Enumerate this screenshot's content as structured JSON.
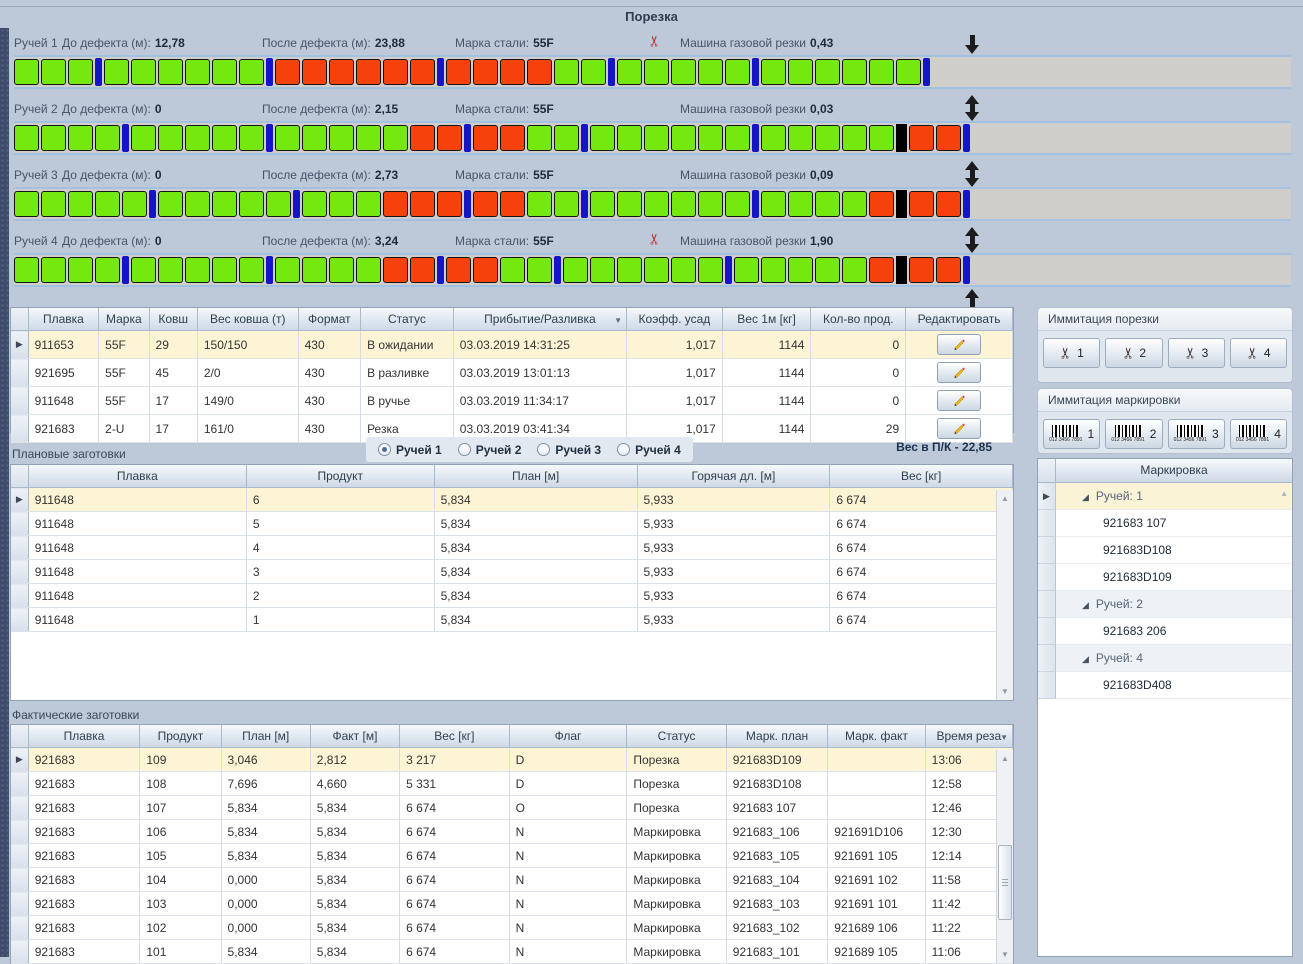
{
  "title": "Порезка",
  "colors": {
    "green_block": "#74e90f",
    "red_block": "#f5420c",
    "separator_blue": "#1414c8",
    "cut_marker": "#000000",
    "selected_row": "#fcf4d5"
  },
  "streams": [
    {
      "name": "Ручей 1",
      "before_label": "До дефекта (м):",
      "before_value": "12,78",
      "after_label": "После дефекта (м):",
      "after_value": "23,88",
      "grade_label": "Марка стали:",
      "grade_value": "55F",
      "machine_label": "Машина газовой резки",
      "machine_value": "0,43",
      "scissors": true,
      "arrow": "down",
      "below_arrow": false,
      "blocks": "gggBggggggBrrrrrrBrrrrggBgggggBggggggB"
    },
    {
      "name": "Ручей 2",
      "before_label": "До дефекта (м):",
      "before_value": "0",
      "after_label": "После дефекта (м):",
      "after_value": "2,15",
      "grade_label": "Марка стали:",
      "grade_value": "55F",
      "machine_label": "Машина газовой резки",
      "machine_value": "0,03",
      "scissors": false,
      "arrow": "double",
      "below_arrow": false,
      "blocks": "ggggBgggggBgggggrrBrrggBggggggBgggggKrrB"
    },
    {
      "name": "Ручей 3",
      "before_label": "До дефекта (м):",
      "before_value": "0",
      "after_label": "После дефекта (м):",
      "after_value": "2,73",
      "grade_label": "Марка стали:",
      "grade_value": "55F",
      "machine_label": "Машина газовой резки",
      "machine_value": "0,09",
      "scissors": false,
      "arrow": "double",
      "below_arrow": false,
      "blocks": "gggggBgggggBgggrrrBrrggBggggggBggggrKrrB"
    },
    {
      "name": "Ручей 4",
      "before_label": "До дефекта (м):",
      "before_value": "0",
      "after_label": "После дефекта (м):",
      "after_value": "3,24",
      "grade_label": "Марка стали:",
      "grade_value": "55F",
      "machine_label": "Машина газовой резки",
      "machine_value": "1,90",
      "scissors": true,
      "arrow": "double",
      "below_arrow": true,
      "blocks": "ggggBgggggBggggrrBrrggBggggggBgggggrKrrB"
    }
  ],
  "heats_table": {
    "columns": [
      "Плавка",
      "Марка",
      "Ковш",
      "Вес ковша (т)",
      "Формат",
      "Статус",
      "Прибытие/Разливка",
      "Коэфф. усад",
      "Вес 1м [кг]",
      "Кол-во прод.",
      "Редактировать"
    ],
    "sort_column": "Прибытие/Разливка",
    "selected_row": 0,
    "rows": [
      [
        "911653",
        "55F",
        "29",
        "150/150",
        "430",
        "В ожидании",
        "03.03.2019 14:31:25",
        "1,017",
        "1144",
        "0",
        ""
      ],
      [
        "921695",
        "55F",
        "45",
        "2/0",
        "430",
        "В разливке",
        "03.03.2019 13:01:13",
        "1,017",
        "1144",
        "0",
        ""
      ],
      [
        "911648",
        "55F",
        "17",
        "149/0",
        "430",
        "В ручье",
        "03.03.2019 11:34:17",
        "1,017",
        "1144",
        "0",
        ""
      ],
      [
        "921683",
        "2-U",
        "17",
        "161/0",
        "430",
        "Резка",
        "03.03.2019 03:41:34",
        "1,017",
        "1144",
        "29",
        ""
      ]
    ]
  },
  "cut_panel": {
    "title": "Иммитация порезки",
    "buttons": [
      "1",
      "2",
      "3",
      "4"
    ]
  },
  "mark_panel": {
    "title": "Иммитация маркировки",
    "buttons": [
      "1",
      "2",
      "3",
      "4"
    ],
    "barcode_digits": "012 3456 7891"
  },
  "marking": {
    "header": "Маркировка",
    "groups": [
      {
        "label": "Ручей: 1",
        "selected": true,
        "items": [
          "921683 107",
          "921683D108",
          "921683D109"
        ]
      },
      {
        "label": "Ручей: 2",
        "selected": false,
        "items": [
          "921683 206"
        ]
      },
      {
        "label": "Ручей: 4",
        "selected": false,
        "items": [
          "921683D408"
        ]
      }
    ]
  },
  "plan": {
    "label": "Плановые заготовки",
    "radios": [
      {
        "label": "Ручей 1",
        "checked": true
      },
      {
        "label": "Ручей 2",
        "checked": false
      },
      {
        "label": "Ручей 3",
        "checked": false
      },
      {
        "label": "Ручей 4",
        "checked": false
      }
    ],
    "weight_note": "Вес в П/К - 22,85",
    "columns": [
      "Плавка",
      "Продукт",
      "План [м]",
      "Горячая дл. [м]",
      "Вес [кг]"
    ],
    "selected_row": 0,
    "rows": [
      [
        "911648",
        "6",
        "5,834",
        "5,933",
        "6 674"
      ],
      [
        "911648",
        "5",
        "5,834",
        "5,933",
        "6 674"
      ],
      [
        "911648",
        "4",
        "5,834",
        "5,933",
        "6 674"
      ],
      [
        "911648",
        "3",
        "5,834",
        "5,933",
        "6 674"
      ],
      [
        "911648",
        "2",
        "5,834",
        "5,933",
        "6 674"
      ],
      [
        "911648",
        "1",
        "5,834",
        "5,933",
        "6 674"
      ]
    ]
  },
  "fact": {
    "label": "Фактические заготовки",
    "columns": [
      "Плавка",
      "Продукт",
      "План [м]",
      "Факт [м]",
      "Вес [кг]",
      "Флаг",
      "Статус",
      "Марк. план",
      "Марк. факт",
      "Время реза"
    ],
    "sort_column": "Время реза",
    "selected_row": 0,
    "rows": [
      [
        "921683",
        "109",
        "3,046",
        "2,812",
        "3 217",
        "D",
        "Порезка",
        "921683D109",
        "",
        "13:06"
      ],
      [
        "921683",
        "108",
        "7,696",
        "4,660",
        "5 331",
        "D",
        "Порезка",
        "921683D108",
        "",
        "12:58"
      ],
      [
        "921683",
        "107",
        "5,834",
        "5,834",
        "6 674",
        "O",
        "Порезка",
        "921683 107",
        "",
        "12:46"
      ],
      [
        "921683",
        "106",
        "5,834",
        "5,834",
        "6 674",
        "N",
        "Маркировка",
        "921683_106",
        "921691D106",
        "12:30"
      ],
      [
        "921683",
        "105",
        "5,834",
        "5,834",
        "6 674",
        "N",
        "Маркировка",
        "921683_105",
        "921691 105",
        "12:14"
      ],
      [
        "921683",
        "104",
        "0,000",
        "5,834",
        "6 674",
        "N",
        "Маркировка",
        "921683_104",
        "921691 102",
        "11:58"
      ],
      [
        "921683",
        "103",
        "0,000",
        "5,834",
        "6 674",
        "N",
        "Маркировка",
        "921683_103",
        "921691 101",
        "11:42"
      ],
      [
        "921683",
        "102",
        "0,000",
        "5,834",
        "6 674",
        "N",
        "Маркировка",
        "921683_102",
        "921689 106",
        "11:22"
      ],
      [
        "921683",
        "101",
        "5,834",
        "5,834",
        "6 674",
        "N",
        "Маркировка",
        "921683_101",
        "921689 105",
        "11:06"
      ]
    ]
  }
}
